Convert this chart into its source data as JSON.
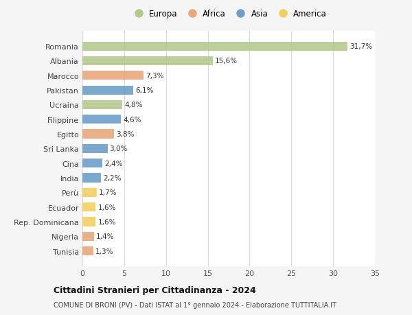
{
  "countries": [
    "Romania",
    "Albania",
    "Marocco",
    "Pakistan",
    "Ucraina",
    "Filippine",
    "Egitto",
    "Sri Lanka",
    "Cina",
    "India",
    "Perù",
    "Ecuador",
    "Rep. Dominicana",
    "Nigeria",
    "Tunisia"
  ],
  "values": [
    31.7,
    15.6,
    7.3,
    6.1,
    4.8,
    4.6,
    3.8,
    3.0,
    2.4,
    2.2,
    1.7,
    1.6,
    1.6,
    1.4,
    1.3
  ],
  "labels": [
    "31,7%",
    "15,6%",
    "7,3%",
    "6,1%",
    "4,8%",
    "4,6%",
    "3,8%",
    "3,0%",
    "2,4%",
    "2,2%",
    "1,7%",
    "1,6%",
    "1,6%",
    "1,4%",
    "1,3%"
  ],
  "continents": [
    "Europa",
    "Europa",
    "Africa",
    "Asia",
    "Europa",
    "Asia",
    "Africa",
    "Asia",
    "Asia",
    "Asia",
    "America",
    "America",
    "America",
    "Africa",
    "Africa"
  ],
  "colors": {
    "Europa": "#b5c98e",
    "Africa": "#e8a87c",
    "Asia": "#6f9fc8",
    "America": "#f2d060"
  },
  "legend_order": [
    "Europa",
    "Africa",
    "Asia",
    "America"
  ],
  "xlim": [
    0,
    35
  ],
  "xticks": [
    0,
    5,
    10,
    15,
    20,
    25,
    30,
    35
  ],
  "title": "Cittadini Stranieri per Cittadinanza - 2024",
  "subtitle": "COMUNE DI BRONI (PV) - Dati ISTAT al 1° gennaio 2024 - Elaborazione TUTTITALIA.IT",
  "bg_color": "#f5f5f5",
  "bar_bg_color": "#ffffff",
  "grid_color": "#d8d8d8"
}
